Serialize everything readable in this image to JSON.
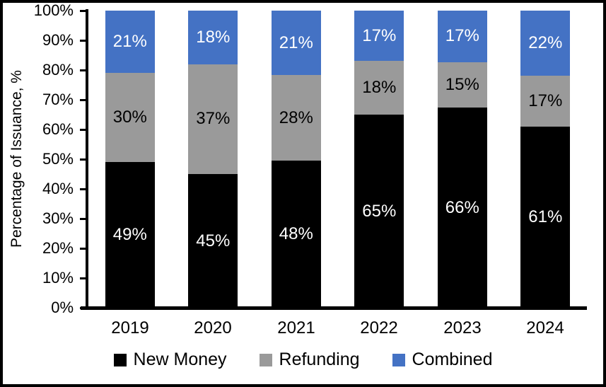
{
  "chart_data": {
    "type": "bar",
    "stacked": true,
    "title": "",
    "ylabel": "Percentage of Issuance, %",
    "xlabel": "",
    "categories": [
      "2019",
      "2020",
      "2021",
      "2022",
      "2023",
      "2024"
    ],
    "series": [
      {
        "name": "New Money",
        "color": "#000000",
        "label_color": "#ffffff",
        "values": [
          49,
          45,
          48,
          65,
          66,
          61
        ]
      },
      {
        "name": "Refunding",
        "color": "#9a9a9a",
        "label_color": "#000000",
        "values": [
          30,
          37,
          28,
          18,
          15,
          17
        ]
      },
      {
        "name": "Combined",
        "color": "#4472c4",
        "label_color": "#ffffff",
        "values": [
          21,
          18,
          21,
          17,
          17,
          22
        ]
      }
    ],
    "value_suffix": "%",
    "y_ticks": [
      "0%",
      "10%",
      "20%",
      "30%",
      "40%",
      "50%",
      "60%",
      "70%",
      "80%",
      "90%",
      "100%"
    ],
    "ylim": [
      0,
      100
    ],
    "grid": false,
    "legend_position": "bottom",
    "axis_color": "#000000",
    "background_color": "#ffffff"
  }
}
